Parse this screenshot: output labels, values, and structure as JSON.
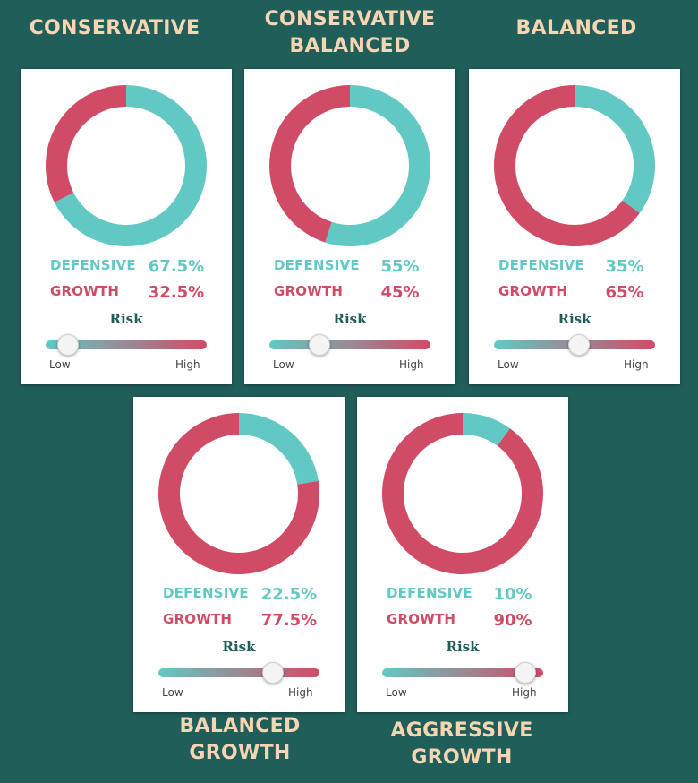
{
  "colors": {
    "background": "#205e5a",
    "title": "#f7d5b3",
    "defensive": "#62c8c3",
    "growth": "#d04c66",
    "risk_label": "#205e5a"
  },
  "risk_label": "Risk",
  "low_label": "Low",
  "high_label": "High",
  "chart_data": [
    {
      "type": "pie",
      "title": "CONSERVATIVE",
      "categories": [
        "DEFENSIVE",
        "GROWTH"
      ],
      "values": [
        67.5,
        32.5
      ],
      "value_labels": [
        "67.5%",
        "32.5%"
      ],
      "risk_level": 0.14
    },
    {
      "type": "pie",
      "title": "CONSERVATIVE\nBALANCED",
      "categories": [
        "DEFENSIVE",
        "GROWTH"
      ],
      "values": [
        55,
        45
      ],
      "value_labels": [
        "55%",
        "45%"
      ],
      "risk_level": 0.31
    },
    {
      "type": "pie",
      "title": "BALANCED",
      "categories": [
        "DEFENSIVE",
        "GROWTH"
      ],
      "values": [
        35,
        65
      ],
      "value_labels": [
        "35%",
        "65%"
      ],
      "risk_level": 0.53
    },
    {
      "type": "pie",
      "title": "BALANCED\nGROWTH",
      "categories": [
        "DEFENSIVE",
        "GROWTH"
      ],
      "values": [
        22.5,
        77.5
      ],
      "value_labels": [
        "22.5%",
        "77.5%"
      ],
      "risk_level": 0.71
    },
    {
      "type": "pie",
      "title": "AGGRESSIVE\nGROWTH",
      "categories": [
        "DEFENSIVE",
        "GROWTH"
      ],
      "values": [
        10,
        90
      ],
      "value_labels": [
        "10%",
        "90%"
      ],
      "risk_level": 0.89
    }
  ]
}
